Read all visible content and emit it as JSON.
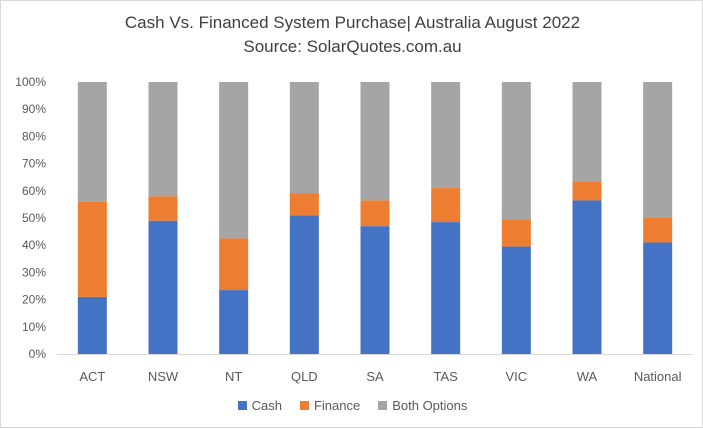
{
  "chart_data": {
    "type": "bar",
    "stacked": true,
    "title": "Cash Vs. Financed System Purchase|  Australia August 2022",
    "subtitle": "Source: SolarQuotes.com.au",
    "categories": [
      "ACT",
      "NSW",
      "NT",
      "QLD",
      "SA",
      "TAS",
      "VIC",
      "WA",
      "National"
    ],
    "series": [
      {
        "name": "Cash",
        "color": "#4472c4",
        "values": [
          21,
          49,
          23.5,
          51,
          47,
          48.5,
          39.5,
          56.5,
          41
        ]
      },
      {
        "name": "Finance",
        "color": "#ed7d31",
        "values": [
          35,
          9,
          19,
          8,
          9.5,
          12.5,
          10,
          7,
          9
        ]
      },
      {
        "name": "Both Options",
        "color": "#a5a5a5",
        "values": [
          44,
          42,
          57.5,
          41,
          43.5,
          39,
          50.5,
          36.5,
          50
        ]
      }
    ],
    "ylim": [
      0,
      100
    ],
    "yticks": [
      "0%",
      "10%",
      "20%",
      "30%",
      "40%",
      "50%",
      "60%",
      "70%",
      "80%",
      "90%",
      "100%"
    ],
    "grid": false,
    "legend_position": "bottom"
  }
}
